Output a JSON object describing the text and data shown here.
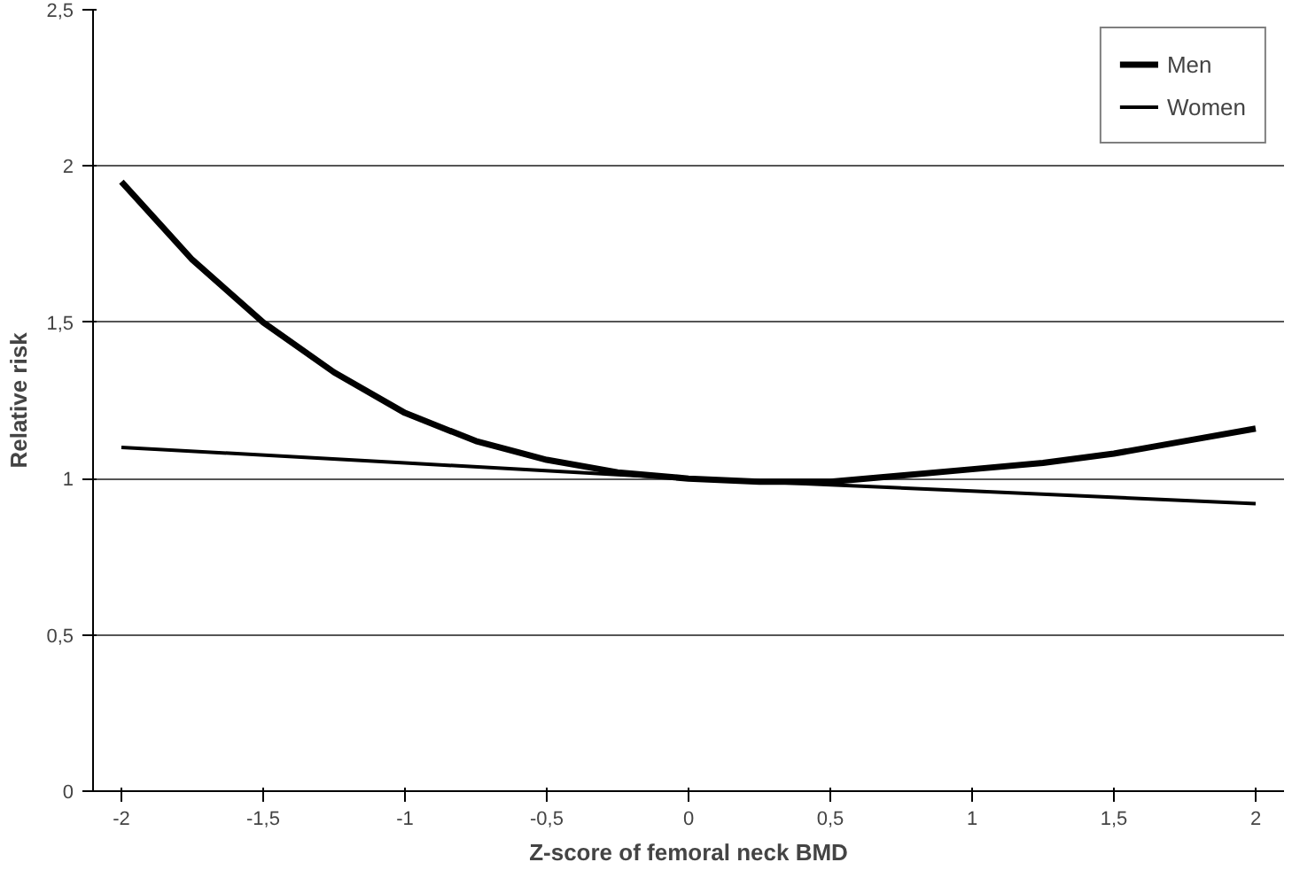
{
  "chart_data": {
    "type": "line",
    "xlabel": "Z-score of femoral neck BMD",
    "ylabel": "Relative risk",
    "xlim": [
      -2.1,
      2.1
    ],
    "ylim": [
      0,
      2.5
    ],
    "xticks": [
      -2,
      {
        "value": -1.5,
        "label": "-1,5"
      },
      -1,
      {
        "value": -0.5,
        "label": "-0,5"
      },
      0,
      {
        "value": 0.5,
        "label": "0,5"
      },
      1,
      {
        "value": 1.5,
        "label": "1,5"
      },
      2
    ],
    "yticks": [
      0,
      {
        "value": 0.5,
        "label": "0,5"
      },
      1,
      {
        "value": 1.5,
        "label": "1,5"
      },
      2,
      {
        "value": 2.5,
        "label": "2,5"
      }
    ],
    "grid": "y",
    "legend": "top right",
    "line_style": "solid",
    "series": [
      {
        "name": "Men",
        "color": "#000000",
        "x": [
          -2,
          -1.75,
          -1.5,
          -1.25,
          -1,
          -0.75,
          -0.5,
          -0.25,
          0,
          0.25,
          0.5,
          0.75,
          1,
          1.25,
          1.5,
          1.75,
          2
        ],
        "values": [
          1.95,
          1.7,
          1.5,
          1.34,
          1.21,
          1.12,
          1.06,
          1.02,
          1.0,
          0.99,
          0.99,
          1.01,
          1.03,
          1.05,
          1.08,
          1.12,
          1.16
        ]
      },
      {
        "name": "Women",
        "color": "#000000",
        "x": [
          -2,
          -1,
          0,
          1,
          2
        ],
        "values": [
          1.1,
          1.05,
          1.0,
          0.96,
          0.92
        ]
      }
    ]
  }
}
